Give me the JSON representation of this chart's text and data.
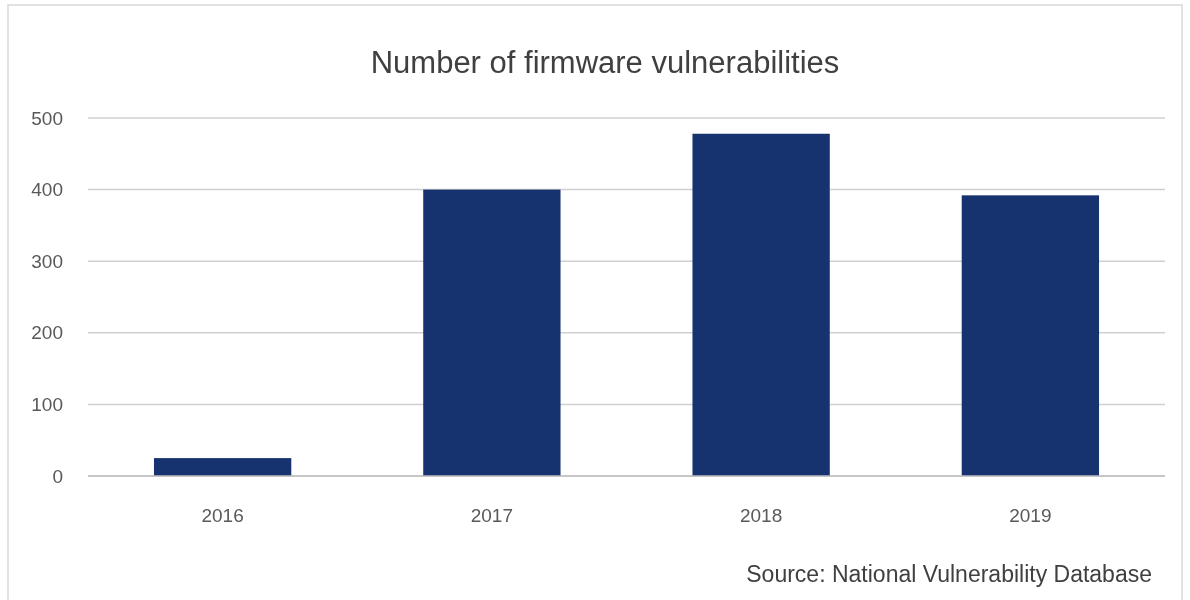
{
  "chart_data": {
    "type": "bar",
    "title": "Number of firmware vulnerabilities",
    "categories": [
      "2016",
      "2017",
      "2018",
      "2019"
    ],
    "values": [
      25,
      400,
      478,
      392
    ],
    "color": "#17336f",
    "ylim": [
      0,
      500
    ],
    "yticks": [
      0,
      100,
      200,
      300,
      400,
      500
    ],
    "grid": "y",
    "annotations": [
      "Source: National Vulnerability Database"
    ]
  }
}
